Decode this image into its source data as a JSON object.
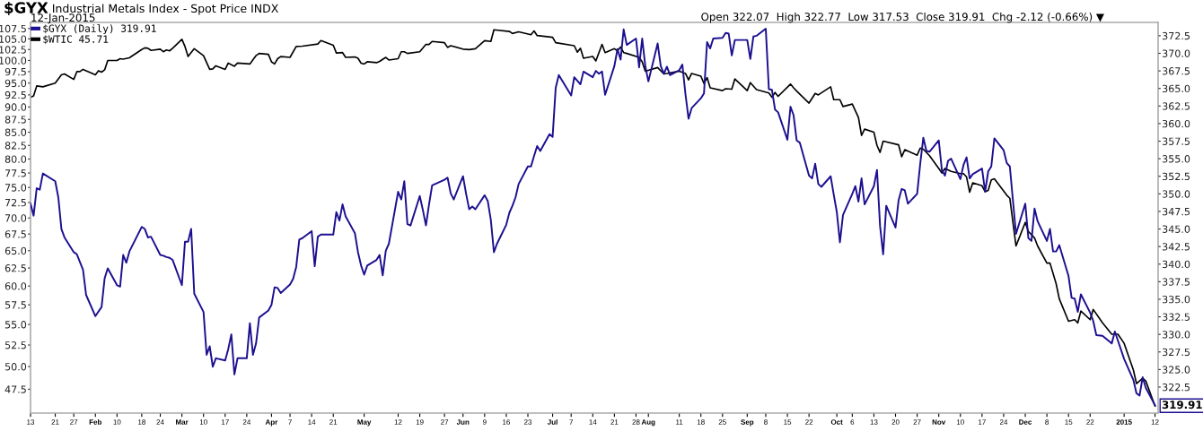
{
  "chart_data": {
    "type": "line",
    "title": "$GYX",
    "subtitle": "Industrial Metals Index - Spot Price INDX",
    "annotations": [
      "12-Jan-2015",
      "Open 322.07  High 322.77  Low 317.53  Close 319.91  Chg -2.12 (-0.66%) ▼",
      "319.91"
    ],
    "legend": "top left",
    "log": "y",
    "xlim": [
      "2014-01-13",
      "2015-01-13"
    ],
    "xticks": [
      {
        "value": "2014-01-13",
        "label": "13"
      },
      {
        "value": "2014-01-21",
        "label": "21"
      },
      {
        "value": "2014-01-27",
        "label": "27"
      },
      {
        "value": "2014-02-03",
        "label": "Feb"
      },
      {
        "value": "2014-02-10",
        "label": "10"
      },
      {
        "value": "2014-02-18",
        "label": "18"
      },
      {
        "value": "2014-02-24",
        "label": "24"
      },
      {
        "value": "2014-03-03",
        "label": "Mar"
      },
      {
        "value": "2014-03-10",
        "label": "10"
      },
      {
        "value": "2014-03-17",
        "label": "17"
      },
      {
        "value": "2014-03-24",
        "label": "24"
      },
      {
        "value": "2014-04-01",
        "label": "Apr"
      },
      {
        "value": "2014-04-07",
        "label": "7"
      },
      {
        "value": "2014-04-14",
        "label": "14"
      },
      {
        "value": "2014-04-21",
        "label": "21"
      },
      {
        "value": "2014-05-01",
        "label": "May"
      },
      {
        "value": "2014-05-12",
        "label": "12"
      },
      {
        "value": "2014-05-19",
        "label": "19"
      },
      {
        "value": "2014-05-27",
        "label": "27"
      },
      {
        "value": "2014-06-02",
        "label": "Jun"
      },
      {
        "value": "2014-06-09",
        "label": "9"
      },
      {
        "value": "2014-06-16",
        "label": "16"
      },
      {
        "value": "2014-06-23",
        "label": "23"
      },
      {
        "value": "2014-07-01",
        "label": "Jul"
      },
      {
        "value": "2014-07-07",
        "label": "7"
      },
      {
        "value": "2014-07-14",
        "label": "14"
      },
      {
        "value": "2014-07-21",
        "label": "21"
      },
      {
        "value": "2014-07-28",
        "label": "28"
      },
      {
        "value": "2014-08-01",
        "label": "Aug"
      },
      {
        "value": "2014-08-11",
        "label": "11"
      },
      {
        "value": "2014-08-18",
        "label": "18"
      },
      {
        "value": "2014-08-25",
        "label": "25"
      },
      {
        "value": "2014-09-02",
        "label": "Sep"
      },
      {
        "value": "2014-09-08",
        "label": "8"
      },
      {
        "value": "2014-09-15",
        "label": "15"
      },
      {
        "value": "2014-09-22",
        "label": "22"
      },
      {
        "value": "2014-10-01",
        "label": "Oct"
      },
      {
        "value": "2014-10-06",
        "label": "6"
      },
      {
        "value": "2014-10-13",
        "label": "13"
      },
      {
        "value": "2014-10-20",
        "label": "20"
      },
      {
        "value": "2014-10-27",
        "label": "27"
      },
      {
        "value": "2014-11-03",
        "label": "Nov"
      },
      {
        "value": "2014-11-10",
        "label": "10"
      },
      {
        "value": "2014-11-17",
        "label": "17"
      },
      {
        "value": "2014-11-24",
        "label": "24"
      },
      {
        "value": "2014-12-01",
        "label": "Dec"
      },
      {
        "value": "2014-12-08",
        "label": "8"
      },
      {
        "value": "2014-12-15",
        "label": "15"
      },
      {
        "value": "2014-12-22",
        "label": "22"
      },
      {
        "value": "2015-01-02",
        "label": "2015"
      },
      {
        "value": "2015-01-12",
        "label": "12"
      }
    ],
    "ylim": [
      45.0,
      109.0
    ],
    "yticks": [
      {
        "value": 47.5,
        "label": "47.5"
      },
      {
        "value": 50,
        "label": "50.0"
      },
      {
        "value": 52.5,
        "label": "52.5"
      },
      {
        "value": 55,
        "label": "55.0"
      },
      {
        "value": 57.5,
        "label": "57.5"
      },
      {
        "value": 60,
        "label": "60.0"
      },
      {
        "value": 62.5,
        "label": "62.5"
      },
      {
        "value": 65,
        "label": "65.0"
      },
      {
        "value": 67.5,
        "label": "67.5"
      },
      {
        "value": 70,
        "label": "70.0"
      },
      {
        "value": 72.5,
        "label": "72.5"
      },
      {
        "value": 75,
        "label": "75.0"
      },
      {
        "value": 77.5,
        "label": "77.5"
      },
      {
        "value": 80,
        "label": "80.0"
      },
      {
        "value": 82.5,
        "label": "82.5"
      },
      {
        "value": 85,
        "label": "85.0"
      },
      {
        "value": 87.5,
        "label": "87.5"
      },
      {
        "value": 90,
        "label": "90.0"
      },
      {
        "value": 92.5,
        "label": "92.5"
      },
      {
        "value": 95,
        "label": "95.0"
      },
      {
        "value": 97.5,
        "label": "97.5"
      },
      {
        "value": 100,
        "label": "100.0"
      },
      {
        "value": 102.5,
        "label": "102.5"
      },
      {
        "value": 105,
        "label": "105.0"
      },
      {
        "value": 107.5,
        "label": "107.5"
      }
    ],
    "y2lim": [
      318.8,
      374.4
    ],
    "y2ticks": [
      {
        "value": 322.5,
        "label": "322.5"
      },
      {
        "value": 325,
        "label": "325.0"
      },
      {
        "value": 327.5,
        "label": "327.5"
      },
      {
        "value": 330,
        "label": "330.0"
      },
      {
        "value": 332.5,
        "label": "332.5"
      },
      {
        "value": 335,
        "label": "335.0"
      },
      {
        "value": 337.5,
        "label": "337.5"
      },
      {
        "value": 340,
        "label": "340.0"
      },
      {
        "value": 342.5,
        "label": "342.5"
      },
      {
        "value": 345,
        "label": "345.0"
      },
      {
        "value": 347.5,
        "label": "347.5"
      },
      {
        "value": 350,
        "label": "350.0"
      },
      {
        "value": 352.5,
        "label": "352.5"
      },
      {
        "value": 355,
        "label": "355.0"
      },
      {
        "value": 357.5,
        "label": "357.5"
      },
      {
        "value": 360,
        "label": "360.0"
      },
      {
        "value": 362.5,
        "label": "362.5"
      },
      {
        "value": 365,
        "label": "365.0"
      },
      {
        "value": 367.5,
        "label": "367.5"
      },
      {
        "value": 370,
        "label": "370.0"
      },
      {
        "value": 372.5,
        "label": "372.5"
      }
    ],
    "series": [
      {
        "name": "$GYX (Daily) 319.91",
        "color": "#1c1090",
        "axis": "y2",
        "x": [
          "2014-01-13",
          "2014-01-14",
          "2014-01-15",
          "2014-01-16",
          "2014-01-17",
          "2014-01-21",
          "2014-01-22",
          "2014-01-23",
          "2014-01-24",
          "2014-01-27",
          "2014-01-28",
          "2014-01-30",
          "2014-01-31",
          "2014-02-03",
          "2014-02-05",
          "2014-02-06",
          "2014-02-07",
          "2014-02-10",
          "2014-02-11",
          "2014-02-12",
          "2014-02-13",
          "2014-02-14",
          "2014-02-18",
          "2014-02-19",
          "2014-02-20",
          "2014-02-21",
          "2014-02-24",
          "2014-02-25",
          "2014-02-26",
          "2014-02-27",
          "2014-02-28",
          "2014-03-03",
          "2014-03-04",
          "2014-03-05",
          "2014-03-06",
          "2014-03-07",
          "2014-03-10",
          "2014-03-11",
          "2014-03-12",
          "2014-03-13",
          "2014-03-14",
          "2014-03-17",
          "2014-03-18",
          "2014-03-19",
          "2014-03-20",
          "2014-03-21",
          "2014-03-24",
          "2014-03-25",
          "2014-03-26",
          "2014-03-27",
          "2014-03-28",
          "2014-03-31",
          "2014-04-01",
          "2014-04-02",
          "2014-04-03",
          "2014-04-04",
          "2014-04-07",
          "2014-04-08",
          "2014-04-09",
          "2014-04-10",
          "2014-04-11",
          "2014-04-14",
          "2014-04-15",
          "2014-04-16",
          "2014-04-17",
          "2014-04-21",
          "2014-04-22",
          "2014-04-23",
          "2014-04-24",
          "2014-04-25",
          "2014-04-28",
          "2014-04-29",
          "2014-04-30",
          "2014-05-01",
          "2014-05-02",
          "2014-05-05",
          "2014-05-06",
          "2014-05-07",
          "2014-05-08",
          "2014-05-09",
          "2014-05-12",
          "2014-05-13",
          "2014-05-14",
          "2014-05-15",
          "2014-05-16",
          "2014-05-19",
          "2014-05-20",
          "2014-05-21",
          "2014-05-22",
          "2014-05-23",
          "2014-05-27",
          "2014-05-28",
          "2014-05-29",
          "2014-05-30",
          "2014-06-02",
          "2014-06-03",
          "2014-06-04",
          "2014-06-05",
          "2014-06-06",
          "2014-06-09",
          "2014-06-10",
          "2014-06-11",
          "2014-06-12",
          "2014-06-13",
          "2014-06-16",
          "2014-06-17",
          "2014-06-18",
          "2014-06-19",
          "2014-06-20",
          "2014-06-23",
          "2014-06-24",
          "2014-06-25",
          "2014-06-26",
          "2014-06-27",
          "2014-06-30",
          "2014-07-01",
          "2014-07-02",
          "2014-07-03",
          "2014-07-07",
          "2014-07-08",
          "2014-07-09",
          "2014-07-10",
          "2014-07-11",
          "2014-07-14",
          "2014-07-15",
          "2014-07-16",
          "2014-07-17",
          "2014-07-18",
          "2014-07-21",
          "2014-07-22",
          "2014-07-23",
          "2014-07-24",
          "2014-07-25",
          "2014-07-28",
          "2014-07-29",
          "2014-07-30",
          "2014-07-31",
          "2014-08-01",
          "2014-08-04",
          "2014-08-05",
          "2014-08-06",
          "2014-08-07",
          "2014-08-08",
          "2014-08-11",
          "2014-08-12",
          "2014-08-13",
          "2014-08-14",
          "2014-08-15",
          "2014-08-18",
          "2014-08-19",
          "2014-08-20",
          "2014-08-21",
          "2014-08-22",
          "2014-08-25",
          "2014-08-26",
          "2014-08-27",
          "2014-08-28",
          "2014-08-29",
          "2014-09-02",
          "2014-09-03",
          "2014-09-04",
          "2014-09-05",
          "2014-09-08",
          "2014-09-09",
          "2014-09-10",
          "2014-09-11",
          "2014-09-12",
          "2014-09-15",
          "2014-09-16",
          "2014-09-17",
          "2014-09-18",
          "2014-09-19",
          "2014-09-22",
          "2014-09-23",
          "2014-09-24",
          "2014-09-25",
          "2014-09-26",
          "2014-09-29",
          "2014-09-30",
          "2014-10-01",
          "2014-10-02",
          "2014-10-03",
          "2014-10-06",
          "2014-10-07",
          "2014-10-08",
          "2014-10-09",
          "2014-10-10",
          "2014-10-13",
          "2014-10-14",
          "2014-10-15",
          "2014-10-16",
          "2014-10-17",
          "2014-10-20",
          "2014-10-21",
          "2014-10-22",
          "2014-10-23",
          "2014-10-24",
          "2014-10-27",
          "2014-10-28",
          "2014-10-29",
          "2014-10-30",
          "2014-10-31",
          "2014-11-03",
          "2014-11-04",
          "2014-11-05",
          "2014-11-06",
          "2014-11-07",
          "2014-11-10",
          "2014-11-11",
          "2014-11-12",
          "2014-11-13",
          "2014-11-14",
          "2014-11-17",
          "2014-11-18",
          "2014-11-19",
          "2014-11-20",
          "2014-11-21",
          "2014-11-24",
          "2014-11-25",
          "2014-11-26",
          "2014-11-28",
          "2014-12-01",
          "2014-12-02",
          "2014-12-03",
          "2014-12-04",
          "2014-12-05",
          "2014-12-08",
          "2014-12-09",
          "2014-12-10",
          "2014-12-11",
          "2014-12-12",
          "2014-12-15",
          "2014-12-16",
          "2014-12-17",
          "2014-12-18",
          "2014-12-19",
          "2014-12-22",
          "2014-12-23",
          "2014-12-24",
          "2014-12-26",
          "2014-12-29",
          "2014-12-30",
          "2014-12-31",
          "2015-01-02",
          "2015-01-05",
          "2015-01-06",
          "2015-01-07",
          "2015-01-08",
          "2015-01-09",
          "2015-01-12"
        ],
        "values": [
          348.6,
          346.9,
          350.8,
          350.6,
          352.9,
          351.8,
          349.5,
          345.0,
          343.8,
          341.7,
          341.4,
          339.2,
          335.6,
          332.6,
          333.9,
          338.0,
          339.4,
          337.0,
          336.8,
          341.3,
          340.2,
          341.8,
          345.3,
          345.0,
          343.8,
          343.9,
          341.3,
          341.2,
          341.0,
          340.9,
          340.6,
          337.0,
          343.2,
          343.2,
          345.0,
          335.8,
          333.2,
          327.1,
          328.3,
          325.4,
          326.6,
          326.3,
          327.9,
          330.0,
          324.3,
          326.6,
          326.6,
          331.6,
          327.1,
          328.7,
          332.4,
          333.4,
          334.2,
          336.7,
          336.6,
          335.9,
          337.1,
          337.9,
          339.6,
          343.5,
          343.7,
          344.7,
          339.7,
          343.9,
          344.2,
          344.2,
          347.4,
          346.2,
          348.5,
          346.8,
          344.4,
          341.7,
          339.8,
          338.5,
          339.8,
          340.6,
          341.3,
          338.4,
          341.9,
          342.9,
          350.3,
          349.2,
          351.8,
          345.7,
          345.5,
          349.7,
          347.7,
          345.5,
          348.5,
          351.2,
          352.0,
          352.3,
          350.1,
          349.2,
          352.5,
          350.0,
          347.8,
          348.2,
          347.8,
          349.8,
          349.0,
          346.3,
          341.7,
          342.9,
          345.6,
          347.3,
          348.3,
          349.5,
          351.4,
          353.9,
          353.9,
          355.4,
          356.8,
          356.1,
          358.5,
          358.1,
          365.1,
          366.9,
          364.0,
          366.6,
          366.1,
          365.6,
          367.4,
          366.6,
          367.5,
          367.1,
          367.4,
          364.1,
          368.2,
          370.6,
          369.1,
          373.4,
          371.2,
          372.1,
          368.0,
          372.1,
          368.2,
          366.0,
          371.4,
          368.2,
          367.1,
          368.1,
          366.9,
          367.6,
          368.4,
          364.2,
          360.7,
          362.2,
          363.6,
          364.3,
          371.6,
          370.7,
          372.1,
          372.2,
          372.9,
          372.8,
          369.7,
          371.9,
          371.9,
          369.2,
          372.4,
          372.5,
          373.5,
          364.9,
          364.8,
          362.0,
          361.6,
          357.7,
          362.4,
          361.2,
          357.6,
          357.3,
          352.6,
          352.2,
          354.3,
          351.4,
          351.0,
          352.5,
          349.9,
          347.4,
          343.1,
          347.0,
          350.0,
          351.1,
          348.9,
          352.2,
          348.5,
          351.1,
          353.4,
          345.4,
          341.4,
          348.3,
          345.2,
          349.1,
          350.7,
          350.5,
          348.6,
          350.0,
          354.3,
          358.0,
          356.1,
          356.0,
          357.6,
          353.4,
          352.6,
          354.7,
          355.0,
          352.1,
          354.1,
          355.2,
          352.2,
          352.8,
          353.6,
          350.3,
          353.2,
          353.9,
          357.9,
          356.2,
          354.4,
          353.9,
          344.3,
          348.6,
          343.7,
          343.3,
          347.9,
          346.1,
          343.3,
          345.0,
          341.8,
          341.8,
          342.7,
          338.3,
          335.2,
          335.1,
          333.2,
          335.7,
          333.1,
          331.9,
          329.9,
          329.8,
          328.7,
          330.4,
          329.1,
          326.5,
          323.5,
          321.6,
          321.3,
          323.9,
          322.4,
          319.91
        ]
      },
      {
        "name": "$WTIC 45.71",
        "color": "#000000",
        "axis": "y",
        "x": [
          "2014-01-13",
          "2014-01-14",
          "2014-01-15",
          "2014-01-17",
          "2014-01-21",
          "2014-01-23",
          "2014-01-24",
          "2014-01-27",
          "2014-01-28",
          "2014-01-29",
          "2014-01-30",
          "2014-02-03",
          "2014-02-04",
          "2014-02-05",
          "2014-02-06",
          "2014-02-07",
          "2014-02-10",
          "2014-02-11",
          "2014-02-12",
          "2014-02-14",
          "2014-02-18",
          "2014-02-19",
          "2014-02-20",
          "2014-02-21",
          "2014-02-24",
          "2014-02-25",
          "2014-02-26",
          "2014-02-27",
          "2014-02-28",
          "2014-03-03",
          "2014-03-04",
          "2014-03-05",
          "2014-03-07",
          "2014-03-10",
          "2014-03-12",
          "2014-03-13",
          "2014-03-14",
          "2014-03-17",
          "2014-03-18",
          "2014-03-20",
          "2014-03-21",
          "2014-03-25",
          "2014-03-27",
          "2014-03-28",
          "2014-03-31",
          "2014-04-01",
          "2014-04-02",
          "2014-04-03",
          "2014-04-04",
          "2014-04-07",
          "2014-04-09",
          "2014-04-11",
          "2014-04-16",
          "2014-04-17",
          "2014-04-21",
          "2014-04-22",
          "2014-04-24",
          "2014-04-25",
          "2014-04-28",
          "2014-04-29",
          "2014-04-30",
          "2014-05-01",
          "2014-05-02",
          "2014-05-05",
          "2014-05-06",
          "2014-05-08",
          "2014-05-09",
          "2014-05-12",
          "2014-05-13",
          "2014-05-14",
          "2014-05-15",
          "2014-05-19",
          "2014-05-21",
          "2014-05-22",
          "2014-05-23",
          "2014-05-27",
          "2014-05-28",
          "2014-05-29",
          "2014-06-02",
          "2014-06-04",
          "2014-06-06",
          "2014-06-09",
          "2014-06-11",
          "2014-06-12",
          "2014-06-17",
          "2014-06-18",
          "2014-06-20",
          "2014-06-24",
          "2014-06-25",
          "2014-06-26",
          "2014-07-01",
          "2014-07-02",
          "2014-07-08",
          "2014-07-09",
          "2014-07-10",
          "2014-07-11",
          "2014-07-14",
          "2014-07-15",
          "2014-07-17",
          "2014-07-18",
          "2014-07-21",
          "2014-07-22",
          "2014-07-23",
          "2014-07-24",
          "2014-07-25",
          "2014-07-29",
          "2014-07-30",
          "2014-07-31",
          "2014-08-04",
          "2014-08-06",
          "2014-08-07",
          "2014-08-11",
          "2014-08-13",
          "2014-08-14",
          "2014-08-15",
          "2014-08-18",
          "2014-08-19",
          "2014-08-20",
          "2014-08-21",
          "2014-08-25",
          "2014-08-26",
          "2014-08-28",
          "2014-08-29",
          "2014-09-02",
          "2014-09-03",
          "2014-09-05",
          "2014-09-09",
          "2014-09-10",
          "2014-09-11",
          "2014-09-12",
          "2014-09-16",
          "2014-09-17",
          "2014-09-18",
          "2014-09-22",
          "2014-09-24",
          "2014-09-25",
          "2014-09-29",
          "2014-09-30",
          "2014-10-02",
          "2014-10-03",
          "2014-10-06",
          "2014-10-08",
          "2014-10-09",
          "2014-10-10",
          "2014-10-13",
          "2014-10-14",
          "2014-10-15",
          "2014-10-16",
          "2014-10-21",
          "2014-10-22",
          "2014-10-23",
          "2014-10-27",
          "2014-10-28",
          "2014-10-29",
          "2014-10-31",
          "2014-11-03",
          "2014-11-04",
          "2014-11-05",
          "2014-11-07",
          "2014-11-10",
          "2014-11-11",
          "2014-11-12",
          "2014-11-13",
          "2014-11-14",
          "2014-11-17",
          "2014-11-18",
          "2014-11-19",
          "2014-11-20",
          "2014-11-21",
          "2014-11-25",
          "2014-11-26",
          "2014-11-28",
          "2014-12-01",
          "2014-12-02",
          "2014-12-04",
          "2014-12-05",
          "2014-12-08",
          "2014-12-09",
          "2014-12-11",
          "2014-12-12",
          "2014-12-15",
          "2014-12-17",
          "2014-12-18",
          "2014-12-19",
          "2014-12-22",
          "2014-12-23",
          "2014-12-26",
          "2014-12-29",
          "2014-12-31",
          "2015-01-02",
          "2015-01-05",
          "2015-01-06",
          "2015-01-08",
          "2015-01-09",
          "2015-01-12"
        ],
        "values": [
          92.0,
          92.3,
          94.4,
          94.2,
          95.0,
          96.8,
          97.0,
          95.8,
          97.5,
          97.5,
          98.0,
          96.8,
          97.7,
          97.4,
          97.9,
          100.0,
          100.0,
          100.4,
          100.3,
          100.6,
          102.5,
          102.9,
          102.8,
          102.3,
          102.6,
          102.0,
          102.4,
          102.2,
          102.8,
          104.9,
          103.2,
          100.9,
          102.7,
          101.1,
          98.0,
          98.1,
          98.8,
          98.0,
          99.4,
          98.7,
          99.4,
          99.2,
          101.1,
          101.6,
          101.4,
          99.7,
          99.2,
          100.4,
          100.9,
          100.7,
          103.2,
          103.3,
          103.8,
          104.6,
          103.5,
          101.7,
          101.8,
          100.7,
          100.8,
          100.5,
          99.4,
          99.2,
          99.7,
          99.5,
          99.8,
          100.7,
          100.1,
          100.4,
          102.0,
          102.0,
          101.6,
          102.0,
          103.7,
          103.7,
          104.4,
          104.1,
          103.0,
          103.4,
          102.6,
          102.5,
          102.7,
          104.6,
          104.4,
          107.2,
          106.8,
          106.3,
          106.7,
          106.0,
          106.9,
          105.8,
          105.4,
          104.1,
          103.4,
          101.9,
          102.8,
          100.5,
          100.9,
          99.9,
          103.7,
          101.8,
          102.7,
          102.2,
          103.1,
          101.8,
          101.6,
          100.7,
          99.7,
          97.6,
          98.4,
          97.0,
          97.1,
          97.6,
          97.1,
          95.7,
          97.1,
          96.5,
          94.9,
          96.2,
          94.0,
          93.4,
          93.8,
          93.7,
          95.9,
          93.4,
          95.1,
          93.6,
          92.9,
          92.0,
          93.0,
          92.2,
          94.8,
          94.0,
          93.3,
          90.8,
          92.8,
          92.5,
          94.2,
          91.5,
          91.5,
          90.1,
          90.6,
          87.9,
          84.4,
          85.6,
          85.0,
          82.5,
          81.2,
          83.3,
          82.6,
          80.4,
          81.7,
          80.7,
          82.0,
          81.8,
          80.6,
          78.3,
          77.5,
          78.3,
          77.8,
          77.4,
          77.4,
          76.8,
          74.2,
          75.8,
          75.3,
          74.3,
          74.5,
          76.3,
          76.5,
          73.7,
          73.2,
          65.7,
          69.3,
          67.9,
          66.9,
          65.7,
          63.2,
          63.2,
          60.3,
          58.3,
          55.4,
          55.6,
          55.2,
          56.7,
          55.6,
          56.9,
          55.2,
          53.8,
          53.8,
          52.7,
          49.6,
          48.1,
          48.7,
          48.4,
          45.71
        ]
      }
    ]
  }
}
